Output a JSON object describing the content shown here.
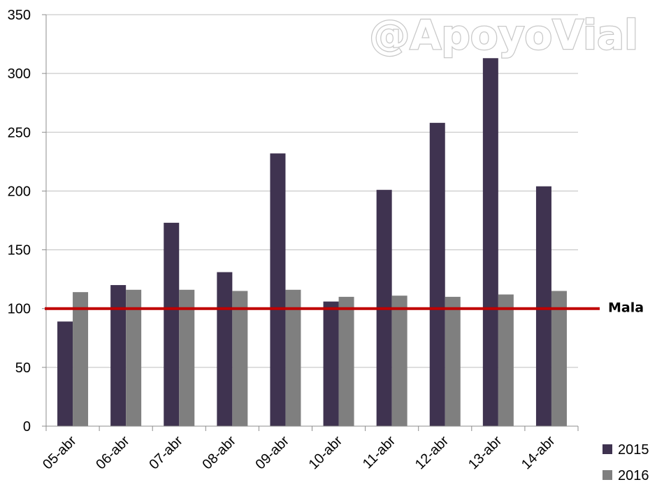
{
  "watermark": "@ApoyoVial",
  "colors": {
    "series_2015": "#3f3350",
    "series_2016": "#7f7f7f",
    "reference_line": "#c00000",
    "gridline": "#bfbfbf",
    "axis": "#8c8c8c"
  },
  "chart_data": {
    "type": "bar",
    "categories": [
      "05-abr",
      "06-abr",
      "07-abr",
      "08-abr",
      "09-abr",
      "10-abr",
      "11-abr",
      "12-abr",
      "13-abr",
      "14-abr"
    ],
    "series": [
      {
        "name": "2015",
        "values": [
          89,
          120,
          173,
          131,
          232,
          106,
          201,
          258,
          313,
          204
        ]
      },
      {
        "name": "2016",
        "values": [
          114,
          116,
          116,
          115,
          116,
          110,
          111,
          110,
          112,
          115
        ]
      }
    ],
    "ylim": [
      0,
      350
    ],
    "yticks": [
      0,
      50,
      100,
      150,
      200,
      250,
      300,
      350
    ],
    "grid": true,
    "legend_position": "bottom-right",
    "reference_line": {
      "value": 100,
      "label": "Mala"
    }
  }
}
